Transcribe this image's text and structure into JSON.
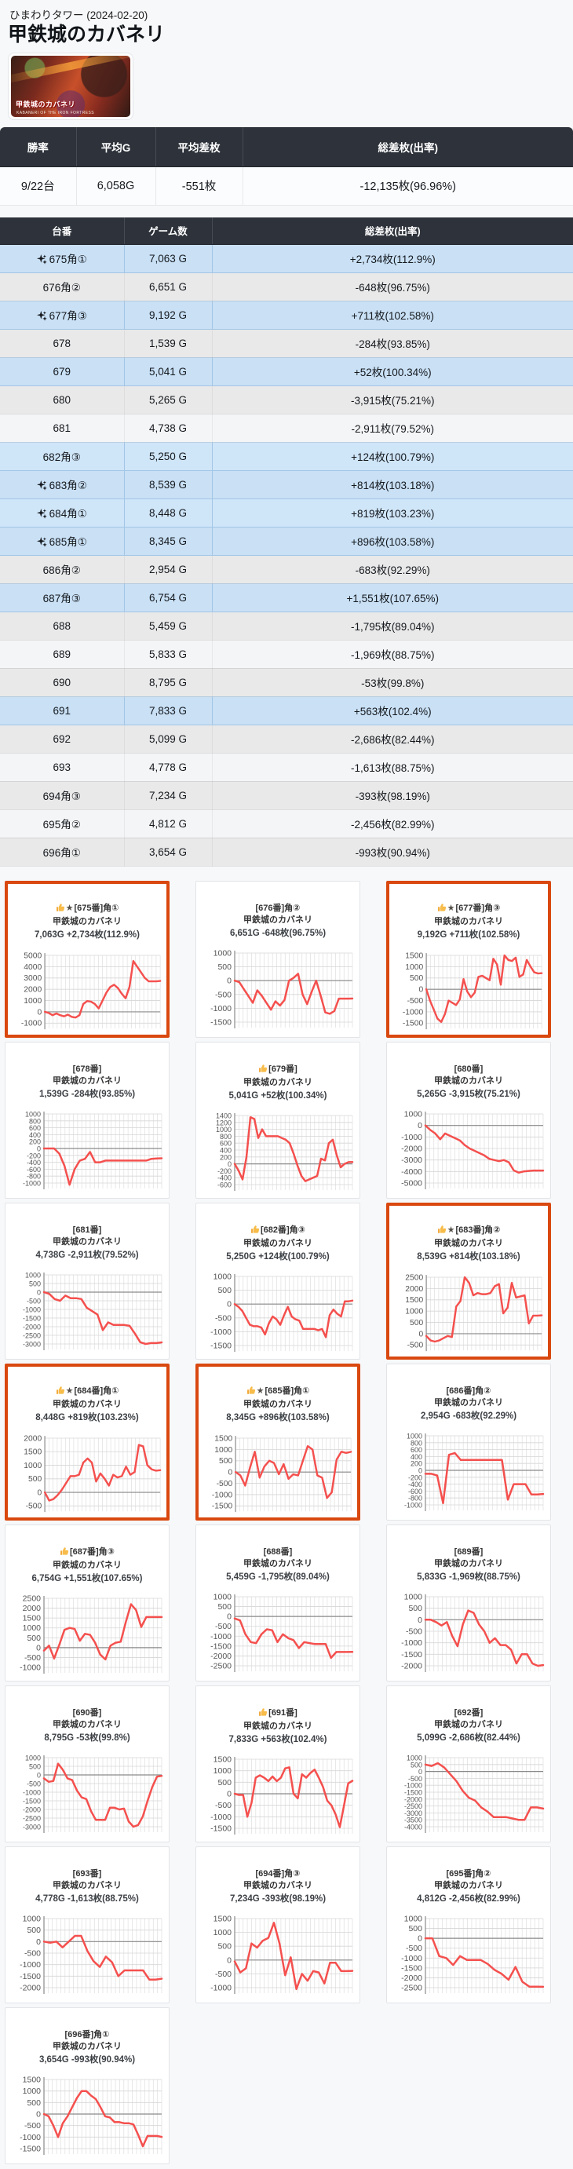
{
  "page": {
    "hall": "ひまわりタワー (2024-02-20)",
    "title": "甲鉄城のカバネリ"
  },
  "banner": {
    "logo": "甲鉄城のカバネリ",
    "caption": "KABANERI OF THE IRON FORTRESS"
  },
  "colors": {
    "accent_border": "#d9480f",
    "row_highlight": "#c9e0f5",
    "chart_line": "#f4504e",
    "header_bg": "#2e333b"
  },
  "icons": {
    "star": "★",
    "sparkle": "sparkle-4-point",
    "thumbs_up": "👍"
  },
  "summary": {
    "headers": [
      "勝率",
      "平均G",
      "平均差枚",
      "総差枚(出率)"
    ],
    "values": [
      "9/22台",
      "6,058G",
      "-551枚",
      "-12,135枚(96.96%)"
    ]
  },
  "table": {
    "headers": [
      "台番",
      "ゲーム数",
      "総差枚(出率)"
    ],
    "rows": [
      {
        "dai": "675角①",
        "games": "7,063 G",
        "diff": "+2,734枚(112.9%)",
        "sparkle": true
      },
      {
        "dai": "676角②",
        "games": "6,651 G",
        "diff": "-648枚(96.75%)",
        "sparkle": false
      },
      {
        "dai": "677角③",
        "games": "9,192 G",
        "diff": "+711枚(102.58%)",
        "sparkle": true
      },
      {
        "dai": "678",
        "games": "1,539 G",
        "diff": "-284枚(93.85%)",
        "sparkle": false
      },
      {
        "dai": "679",
        "games": "5,041 G",
        "diff": "+52枚(100.34%)",
        "sparkle": false
      },
      {
        "dai": "680",
        "games": "5,265 G",
        "diff": "-3,915枚(75.21%)",
        "sparkle": false
      },
      {
        "dai": "681",
        "games": "4,738 G",
        "diff": "-2,911枚(79.52%)",
        "sparkle": false
      },
      {
        "dai": "682角③",
        "games": "5,250 G",
        "diff": "+124枚(100.79%)",
        "sparkle": false
      },
      {
        "dai": "683角②",
        "games": "8,539 G",
        "diff": "+814枚(103.18%)",
        "sparkle": true
      },
      {
        "dai": "684角①",
        "games": "8,448 G",
        "diff": "+819枚(103.23%)",
        "sparkle": true
      },
      {
        "dai": "685角①",
        "games": "8,345 G",
        "diff": "+896枚(103.58%)",
        "sparkle": true
      },
      {
        "dai": "686角②",
        "games": "2,954 G",
        "diff": "-683枚(92.29%)",
        "sparkle": false
      },
      {
        "dai": "687角③",
        "games": "6,754 G",
        "diff": "+1,551枚(107.65%)",
        "sparkle": false
      },
      {
        "dai": "688",
        "games": "5,459 G",
        "diff": "-1,795枚(89.04%)",
        "sparkle": false
      },
      {
        "dai": "689",
        "games": "5,833 G",
        "diff": "-1,969枚(88.75%)",
        "sparkle": false
      },
      {
        "dai": "690",
        "games": "8,795 G",
        "diff": "-53枚(99.8%)",
        "sparkle": false
      },
      {
        "dai": "691",
        "games": "7,833 G",
        "diff": "+563枚(102.4%)",
        "sparkle": false
      },
      {
        "dai": "692",
        "games": "5,099 G",
        "diff": "-2,686枚(82.44%)",
        "sparkle": false
      },
      {
        "dai": "693",
        "games": "4,778 G",
        "diff": "-1,613枚(88.75%)",
        "sparkle": false
      },
      {
        "dai": "694角③",
        "games": "7,234 G",
        "diff": "-393枚(98.19%)",
        "sparkle": false
      },
      {
        "dai": "695角②",
        "games": "4,812 G",
        "diff": "-2,456枚(82.99%)",
        "sparkle": false
      },
      {
        "dai": "696角①",
        "games": "3,654 G",
        "diff": "-993枚(90.94%)",
        "sparkle": false
      }
    ]
  },
  "chart_data": [
    {
      "type": "line",
      "title": "[675番]角①",
      "name": "甲鉄城のカバネリ",
      "stats": "7,063G +2,734枚(112.9%)",
      "thumb": true,
      "star": true,
      "highlight_border": true,
      "ymax": 5000,
      "ymin": -1000,
      "ystep": 1000,
      "points": [
        0,
        -100,
        -300,
        -150,
        -300,
        -400,
        -250,
        -450,
        -500,
        -300,
        700,
        950,
        900,
        700,
        300,
        1000,
        1700,
        2200,
        2400,
        2100,
        1600,
        1200,
        2200,
        4500,
        4000,
        3500,
        3000,
        2700,
        2700,
        2700,
        2734
      ]
    },
    {
      "type": "line",
      "title": "[676番]角②",
      "name": "甲鉄城のカバネリ",
      "stats": "6,651G -648枚(96.75%)",
      "thumb": false,
      "star": false,
      "highlight_border": false,
      "ymax": 1000,
      "ymin": -1500,
      "ystep": 500,
      "points": [
        0,
        -50,
        -300,
        -550,
        -800,
        -350,
        -550,
        -800,
        -1050,
        -750,
        -900,
        -700,
        0,
        100,
        250,
        -500,
        -850,
        -400,
        0,
        -550,
        -1150,
        -1200,
        -1100,
        -650,
        -650,
        -650,
        -648
      ]
    },
    {
      "type": "line",
      "title": "[677番]角③",
      "name": "甲鉄城のカバネリ",
      "stats": "9,192G +711枚(102.58%)",
      "thumb": true,
      "star": true,
      "highlight_border": true,
      "ymax": 1500,
      "ymin": -1500,
      "ystep": 500,
      "points": [
        0,
        -500,
        -900,
        -1300,
        -1450,
        -1100,
        -500,
        -600,
        -700,
        -450,
        450,
        -100,
        -350,
        -150,
        550,
        600,
        500,
        400,
        1350,
        1100,
        200,
        1500,
        1300,
        1250,
        1400,
        550,
        650,
        1300,
        1000,
        750,
        700,
        711
      ]
    },
    {
      "type": "line",
      "title": "[678番]",
      "name": "甲鉄城のカバネリ",
      "stats": "1,539G -284枚(93.85%)",
      "thumb": false,
      "star": false,
      "highlight_border": false,
      "ymax": 1000,
      "ymin": -1000,
      "ystep": 200,
      "points": [
        0,
        0,
        0,
        -150,
        -500,
        -1050,
        -600,
        -350,
        -300,
        -100,
        -400,
        -400,
        -350,
        -350,
        -350,
        -350,
        -350,
        -350,
        -350,
        -350,
        -350,
        -300,
        -290,
        -284
      ]
    },
    {
      "type": "line",
      "title": "[679番]",
      "name": "甲鉄城のカバネリ",
      "stats": "5,041G +52枚(100.34%)",
      "thumb": true,
      "star": false,
      "highlight_border": false,
      "ymax": 1400,
      "ymin": -600,
      "ystep": 200,
      "points": [
        0,
        -200,
        -450,
        200,
        1350,
        1300,
        750,
        1000,
        800,
        800,
        800,
        800,
        750,
        700,
        600,
        300,
        -50,
        -350,
        -500,
        -450,
        -400,
        -350,
        150,
        100,
        600,
        700,
        250,
        -100,
        0,
        50,
        52
      ]
    },
    {
      "type": "line",
      "title": "[680番]",
      "name": "甲鉄城のカバネリ",
      "stats": "5,265G -3,915枚(75.21%)",
      "thumb": false,
      "star": false,
      "highlight_border": false,
      "ymax": 1000,
      "ymin": -5000,
      "ystep": 1000,
      "points": [
        0,
        -400,
        -700,
        -1200,
        -700,
        -900,
        -1100,
        -1300,
        -1700,
        -2000,
        -2200,
        -2400,
        -2600,
        -2900,
        -3000,
        -3100,
        -3000,
        -3200,
        -3900,
        -4100,
        -4000,
        -3950,
        -3915,
        -3915,
        -3915
      ]
    },
    {
      "type": "line",
      "title": "[681番]",
      "name": "甲鉄城のカバネリ",
      "stats": "4,738G -2,911枚(79.52%)",
      "thumb": false,
      "star": false,
      "highlight_border": false,
      "ymax": 1000,
      "ymin": -3000,
      "ystep": 500,
      "points": [
        0,
        -100,
        -400,
        -500,
        -200,
        -350,
        -350,
        -400,
        -900,
        -1100,
        -1300,
        -2200,
        -1750,
        -1900,
        -1900,
        -1900,
        -1950,
        -2400,
        -2900,
        -3000,
        -2950,
        -2950,
        -2911
      ]
    },
    {
      "type": "line",
      "title": "[682番]角③",
      "name": "甲鉄城のカバネリ",
      "stats": "5,250G +124枚(100.79%)",
      "thumb": true,
      "star": false,
      "highlight_border": false,
      "ymax": 1000,
      "ymin": -1500,
      "ystep": 500,
      "points": [
        0,
        -100,
        -250,
        -500,
        -750,
        -800,
        -800,
        -850,
        -1100,
        -700,
        -450,
        -550,
        -750,
        -400,
        -100,
        -450,
        -550,
        -600,
        -900,
        -900,
        -900,
        -900,
        -950,
        -900,
        -1200,
        -400,
        -200,
        -350,
        -450,
        100,
        100,
        124
      ]
    },
    {
      "type": "line",
      "title": "[683番]角②",
      "name": "甲鉄城のカバネリ",
      "stats": "8,539G +814枚(103.18%)",
      "thumb": true,
      "star": true,
      "highlight_border": true,
      "ymax": 2500,
      "ymin": -500,
      "ystep": 500,
      "points": [
        -100,
        -300,
        -350,
        -300,
        -200,
        -100,
        -150,
        1200,
        1450,
        2500,
        2250,
        1700,
        1800,
        1750,
        1750,
        1800,
        2100,
        2200,
        900,
        1150,
        2250,
        1600,
        1650,
        1700,
        450,
        800,
        800,
        814
      ]
    },
    {
      "type": "line",
      "title": "[684番]角①",
      "name": "甲鉄城のカバネリ",
      "stats": "8,448G +819枚(103.23%)",
      "thumb": true,
      "star": true,
      "highlight_border": true,
      "ymax": 2000,
      "ymin": -500,
      "ystep": 500,
      "points": [
        0,
        -300,
        -250,
        -100,
        100,
        350,
        600,
        600,
        650,
        1100,
        1250,
        1100,
        400,
        700,
        500,
        250,
        650,
        550,
        600,
        950,
        650,
        750,
        1750,
        1700,
        1000,
        850,
        800,
        819
      ]
    },
    {
      "type": "line",
      "title": "[685番]角①",
      "name": "甲鉄城のカバネリ",
      "stats": "8,345G +896枚(103.58%)",
      "thumb": true,
      "star": true,
      "highlight_border": true,
      "ymax": 1500,
      "ymin": -1500,
      "ystep": 500,
      "points": [
        0,
        -150,
        -600,
        200,
        900,
        -250,
        250,
        500,
        400,
        -100,
        350,
        -300,
        -100,
        -150,
        500,
        1150,
        1000,
        -150,
        -250,
        -1150,
        -900,
        550,
        900,
        850,
        896
      ]
    },
    {
      "type": "line",
      "title": "[686番]角②",
      "name": "甲鉄城のカバネリ",
      "stats": "2,954G -683枚(92.29%)",
      "thumb": false,
      "star": false,
      "highlight_border": false,
      "ymax": 1000,
      "ymin": -1000,
      "ystep": 200,
      "points": [
        -100,
        -100,
        -150,
        -950,
        450,
        500,
        300,
        300,
        300,
        300,
        300,
        300,
        300,
        300,
        -850,
        -400,
        -400,
        -400,
        -700,
        -700,
        -683
      ]
    },
    {
      "type": "line",
      "title": "[687番]角③",
      "name": "甲鉄城のカバネリ",
      "stats": "6,754G +1,551枚(107.65%)",
      "thumb": true,
      "star": false,
      "highlight_border": false,
      "ymax": 2500,
      "ymin": -1000,
      "ystep": 500,
      "points": [
        -150,
        100,
        -550,
        150,
        900,
        1000,
        950,
        350,
        700,
        650,
        250,
        -350,
        -600,
        100,
        250,
        300,
        1300,
        2200,
        1900,
        1050,
        1550,
        1550,
        1550,
        1551
      ]
    },
    {
      "type": "line",
      "title": "[688番]",
      "name": "甲鉄城のカバネリ",
      "stats": "5,459G -1,795枚(89.04%)",
      "thumb": false,
      "star": false,
      "highlight_border": false,
      "ymax": 1000,
      "ymin": -2500,
      "ystep": 500,
      "points": [
        -100,
        -200,
        -900,
        -1300,
        -1350,
        -900,
        -650,
        -700,
        -1300,
        -900,
        -1100,
        -1200,
        -1600,
        -1300,
        -1350,
        -1400,
        -1400,
        -1400,
        -2100,
        -1800,
        -1800,
        -1800,
        -1795
      ]
    },
    {
      "type": "line",
      "title": "[689番]",
      "name": "甲鉄城のカバネリ",
      "stats": "5,833G -1,969枚(88.75%)",
      "thumb": false,
      "star": false,
      "highlight_border": false,
      "ymax": 1000,
      "ymin": -2000,
      "ystep": 500,
      "points": [
        0,
        0,
        -100,
        -250,
        -100,
        -700,
        -1150,
        -200,
        400,
        300,
        -200,
        -500,
        -1000,
        -800,
        -1100,
        -1100,
        -1300,
        -1900,
        -1500,
        -1500,
        -1900,
        -2000,
        -1969
      ]
    },
    {
      "type": "line",
      "title": "[690番]",
      "name": "甲鉄城のカバネリ",
      "stats": "8,795G -53枚(99.8%)",
      "thumb": false,
      "star": false,
      "highlight_border": false,
      "ymax": 1000,
      "ymin": -3000,
      "ystep": 500,
      "points": [
        -200,
        -400,
        -350,
        650,
        300,
        -200,
        -300,
        -900,
        -1300,
        -1400,
        -2100,
        -2600,
        -2600,
        -2600,
        -1900,
        -1900,
        -2000,
        -1950,
        -2700,
        -3000,
        -2900,
        -2400,
        -1500,
        -700,
        -100,
        -53
      ]
    },
    {
      "type": "line",
      "title": "[691番]",
      "name": "甲鉄城のカバネリ",
      "stats": "7,833G +563枚(102.4%)",
      "thumb": true,
      "star": false,
      "highlight_border": false,
      "ymax": 1500,
      "ymin": -1500,
      "ystep": 500,
      "points": [
        0,
        -50,
        -50,
        -1000,
        -400,
        700,
        800,
        700,
        550,
        750,
        550,
        700,
        1100,
        1150,
        0,
        -200,
        850,
        700,
        900,
        1050,
        700,
        300,
        -300,
        -500,
        -900,
        -1450,
        -500,
        450,
        563
      ]
    },
    {
      "type": "line",
      "title": "[692番]",
      "name": "甲鉄城のカバネリ",
      "stats": "5,099G -2,686枚(82.44%)",
      "thumb": false,
      "star": false,
      "highlight_border": false,
      "ymax": 1000,
      "ymin": -4000,
      "ystep": 500,
      "points": [
        500,
        400,
        600,
        300,
        -200,
        -700,
        -1400,
        -1900,
        -2100,
        -2600,
        -2900,
        -3300,
        -3300,
        -3300,
        -3400,
        -3500,
        -3500,
        -2600,
        -2600,
        -2686
      ]
    },
    {
      "type": "line",
      "title": "[693番]",
      "name": "甲鉄城のカバネリ",
      "stats": "4,778G -1,613枚(88.75%)",
      "thumb": false,
      "star": false,
      "highlight_border": false,
      "ymax": 1000,
      "ymin": -2000,
      "ystep": 500,
      "points": [
        0,
        -50,
        0,
        -250,
        0,
        250,
        250,
        -400,
        -850,
        -1100,
        -650,
        -900,
        -1500,
        -1250,
        -1250,
        -1250,
        -1250,
        -1650,
        -1650,
        -1613
      ]
    },
    {
      "type": "line",
      "title": "[694番]角③",
      "name": "甲鉄城のカバネリ",
      "stats": "7,234G -393枚(98.19%)",
      "thumb": false,
      "star": false,
      "highlight_border": false,
      "ymax": 1500,
      "ymin": -1000,
      "ystep": 500,
      "points": [
        -50,
        -450,
        -300,
        600,
        450,
        700,
        800,
        1350,
        600,
        -550,
        100,
        -1050,
        -500,
        -750,
        -400,
        -450,
        -850,
        -100,
        -100,
        -400,
        -400,
        -393
      ]
    },
    {
      "type": "line",
      "title": "[695番]角②",
      "name": "甲鉄城のカバネリ",
      "stats": "4,812G -2,456枚(82.99%)",
      "thumb": false,
      "star": false,
      "highlight_border": false,
      "ymax": 1000,
      "ymin": -2500,
      "ystep": 500,
      "points": [
        0,
        0,
        -900,
        -1000,
        -1350,
        -900,
        -1100,
        -1100,
        -1100,
        -1300,
        -1600,
        -1800,
        -2100,
        -1450,
        -2200,
        -2450,
        -2450,
        -2456
      ]
    },
    {
      "type": "line",
      "title": "[696番]角①",
      "name": "甲鉄城のカバネリ",
      "stats": "3,654G -993枚(90.94%)",
      "thumb": false,
      "star": false,
      "highlight_border": false,
      "ymax": 1500,
      "ymin": -1500,
      "ystep": 500,
      "points": [
        0,
        -100,
        -500,
        -1000,
        -400,
        -100,
        300,
        700,
        1000,
        1000,
        800,
        650,
        300,
        -100,
        -150,
        -350,
        -350,
        -400,
        -400,
        -450,
        -900,
        -1400,
        -950,
        -950,
        -950,
        -993
      ]
    }
  ]
}
